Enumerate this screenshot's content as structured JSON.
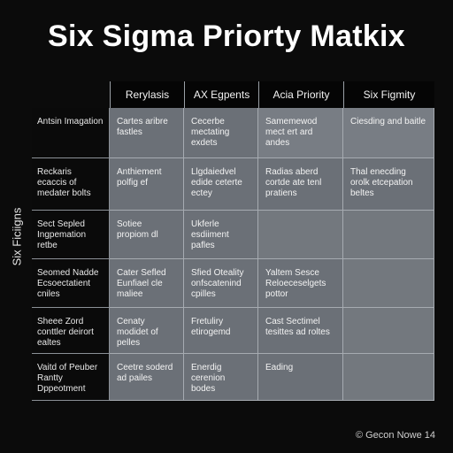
{
  "title": "Six Sigma Priorty Matkix",
  "side_label": "Six Ficiigns",
  "columns": [
    "Rerylasis",
    "AX Egpents",
    "Acia Priority",
    "Six Figmity"
  ],
  "rows": [
    {
      "label": "Antsin Imagation",
      "cells": [
        "Cartes aribre fastles",
        "Cecerbe mectating exdets",
        "Samemewod mect ert ard andes",
        "Ciesding and baitle"
      ]
    },
    {
      "label": "Reckaris ecaccis of medater bolts",
      "cells": [
        "Anthiement polfig ef",
        "Llgdaiedvel edide ceterte ectey",
        "Radias aberd cortde ate tenl pratiens",
        "Thal enecding orolk etcepation beltes"
      ]
    },
    {
      "label": "Sect Sepled Ingpemation retbe",
      "cells": [
        "Sotiee propiom dl",
        "Ukferle esdiiment pafles",
        "",
        ""
      ]
    },
    {
      "label": "Seomed Nadde Ecsoectatient cniles",
      "cells": [
        "Cater Sefled Eunfiael cle maliee",
        "Sfied Oteality onfscatenind cpilles",
        "Yaltem Sesce Reloeceselgets pottor",
        ""
      ]
    },
    {
      "label": "Sheee Zord conttler deirort ealtes",
      "cells": [
        "Cenaty modidet of pelles",
        "Fretuliry etirogemd",
        "Cast Sectimel tesittes ad roltes",
        ""
      ]
    },
    {
      "label": "Vaitd of Peuber Rantty Dppeotment",
      "cells": [
        "Ceetre soderd ad pailes",
        "Enerdig cerenion bodes",
        "Eading",
        ""
      ]
    }
  ],
  "footnote": "© Gecon Nowe 14"
}
